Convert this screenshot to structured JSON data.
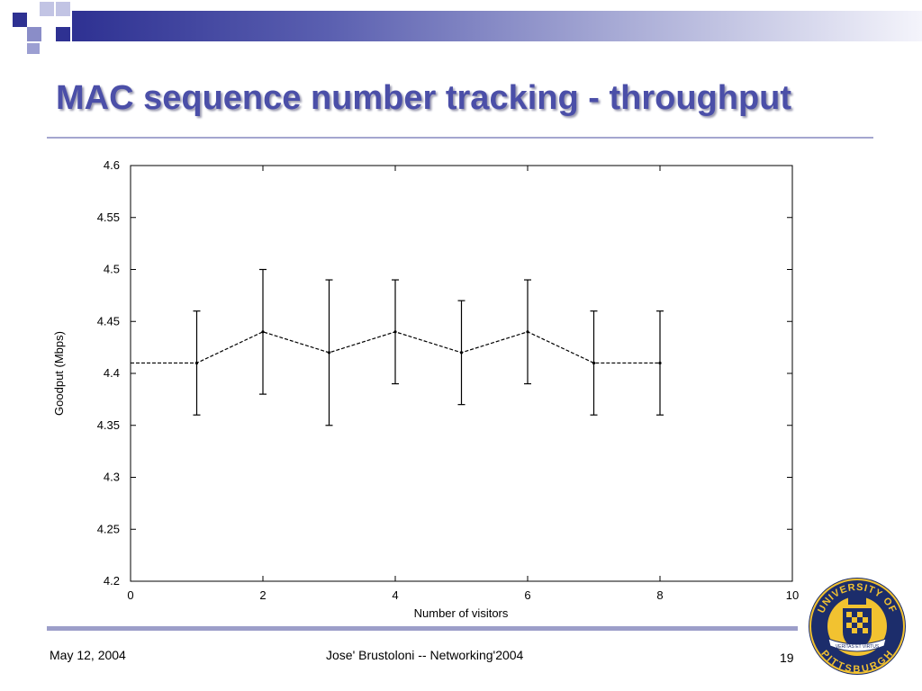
{
  "slide": {
    "title": "MAC sequence number tracking - throughput",
    "footer_date": "May 12, 2004",
    "footer_center": "Jose' Brustoloni -- Networking'2004",
    "page_number": "19"
  },
  "seal": {
    "top_text": "UNIVERSITY OF",
    "bottom_text": "PITTSBURGH",
    "banner_text": "VERITAS ET VIRTUS",
    "colors": {
      "navy": "#1c2d6b",
      "gold": "#f2c230"
    }
  },
  "colors": {
    "title": "#4b4fa8",
    "banner_dark": "#2e3192",
    "rule": "#a4a6cf"
  },
  "chart_data": {
    "type": "line",
    "xlabel": "Number of visitors",
    "ylabel": "Goodput (Mbps)",
    "xlim": [
      0,
      10
    ],
    "ylim": [
      4.2,
      4.6
    ],
    "x_ticks": [
      "0",
      "2",
      "4",
      "6",
      "8",
      "10"
    ],
    "y_ticks": [
      "4.2",
      "4.25",
      "4.3",
      "4.35",
      "4.4",
      "4.45",
      "4.5",
      "4.55",
      "4.6"
    ],
    "grid": false,
    "series": [
      {
        "x": [
          0,
          1,
          2,
          3,
          4,
          5,
          6,
          7,
          8
        ],
        "y": [
          4.41,
          4.41,
          4.44,
          4.42,
          4.44,
          4.42,
          4.44,
          4.41,
          4.41
        ],
        "error_low": [
          null,
          4.36,
          4.38,
          4.35,
          4.39,
          4.37,
          4.39,
          4.36,
          4.36
        ],
        "error_high": [
          null,
          4.46,
          4.5,
          4.49,
          4.49,
          4.47,
          4.49,
          4.46,
          4.46
        ],
        "line_style": "dashed"
      }
    ]
  }
}
